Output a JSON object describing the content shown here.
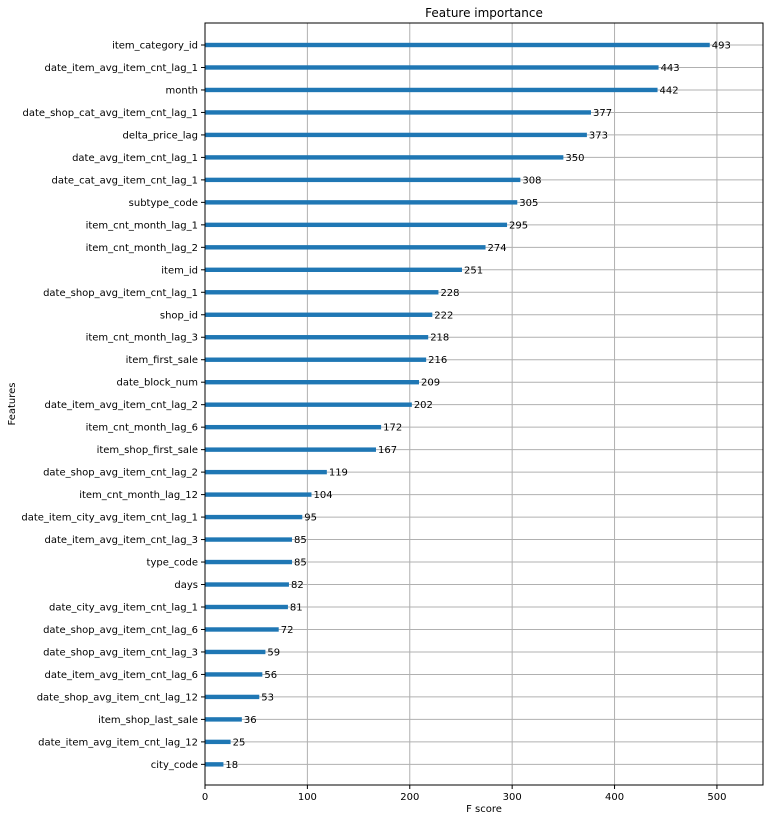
{
  "chart_data": {
    "type": "bar",
    "orientation": "horizontal",
    "title": "Feature importance",
    "xlabel": "F score",
    "ylabel": "Features",
    "xlim": [
      0,
      545
    ],
    "xticks": [
      0,
      100,
      200,
      300,
      400,
      500
    ],
    "grid": true,
    "bar_color": "#1f77b4",
    "categories": [
      "item_category_id",
      "date_item_avg_item_cnt_lag_1",
      "month",
      "date_shop_cat_avg_item_cnt_lag_1",
      "delta_price_lag",
      "date_avg_item_cnt_lag_1",
      "date_cat_avg_item_cnt_lag_1",
      "subtype_code",
      "item_cnt_month_lag_1",
      "item_cnt_month_lag_2",
      "item_id",
      "date_shop_avg_item_cnt_lag_1",
      "shop_id",
      "item_cnt_month_lag_3",
      "item_first_sale",
      "date_block_num",
      "date_item_avg_item_cnt_lag_2",
      "item_cnt_month_lag_6",
      "item_shop_first_sale",
      "date_shop_avg_item_cnt_lag_2",
      "item_cnt_month_lag_12",
      "date_item_city_avg_item_cnt_lag_1",
      "date_item_avg_item_cnt_lag_3",
      "type_code",
      "days",
      "date_city_avg_item_cnt_lag_1",
      "date_shop_avg_item_cnt_lag_6",
      "date_shop_avg_item_cnt_lag_3",
      "date_item_avg_item_cnt_lag_6",
      "date_shop_avg_item_cnt_lag_12",
      "item_shop_last_sale",
      "date_item_avg_item_cnt_lag_12",
      "city_code"
    ],
    "values": [
      493,
      443,
      442,
      377,
      373,
      350,
      308,
      305,
      295,
      274,
      251,
      228,
      222,
      218,
      216,
      209,
      202,
      172,
      167,
      119,
      104,
      95,
      85,
      85,
      82,
      81,
      72,
      59,
      56,
      53,
      36,
      25,
      18
    ]
  }
}
